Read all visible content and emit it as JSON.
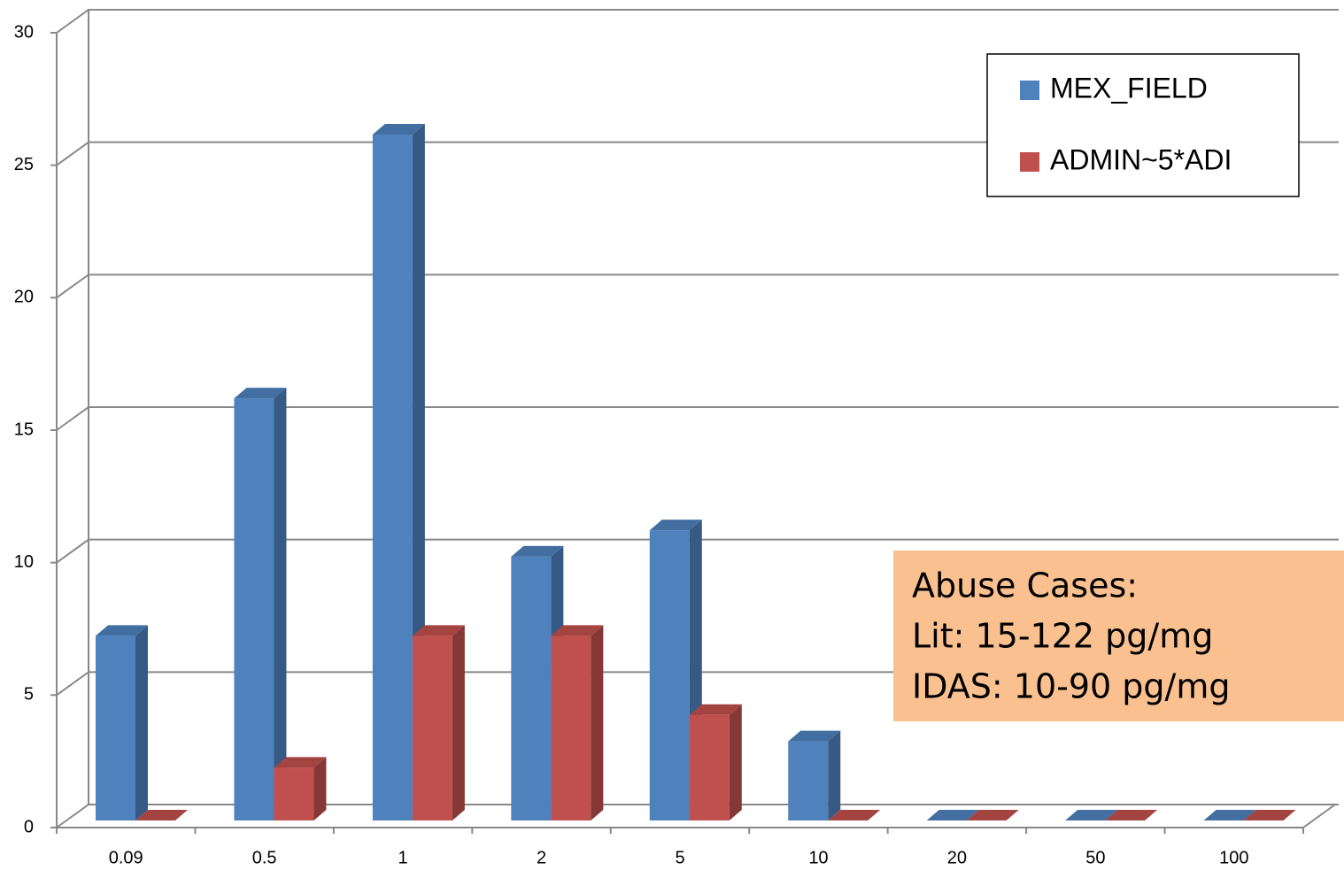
{
  "chart_data": {
    "type": "bar3d",
    "categories": [
      "0.09",
      "0.5",
      "1",
      "2",
      "5",
      "10",
      "20",
      "50",
      "100"
    ],
    "series": [
      {
        "name": "MEX_FIELD",
        "color": "#4f81bd",
        "values": [
          7,
          16,
          26,
          10,
          11,
          3,
          0,
          0,
          0
        ]
      },
      {
        "name": "ADMIN~5*ADI",
        "color": "#c0504d",
        "values": [
          0,
          2,
          7,
          7,
          4,
          0,
          0,
          0,
          0
        ]
      }
    ],
    "ylim": [
      0,
      30
    ],
    "yticks": [
      0,
      5,
      10,
      15,
      20,
      25,
      30
    ],
    "grid": true,
    "legend": "top-right",
    "annotations": [
      "Abuse Cases:",
      "Lit: 15-122 pg/mg",
      "IDAS: 10-90 pg/mg"
    ]
  }
}
